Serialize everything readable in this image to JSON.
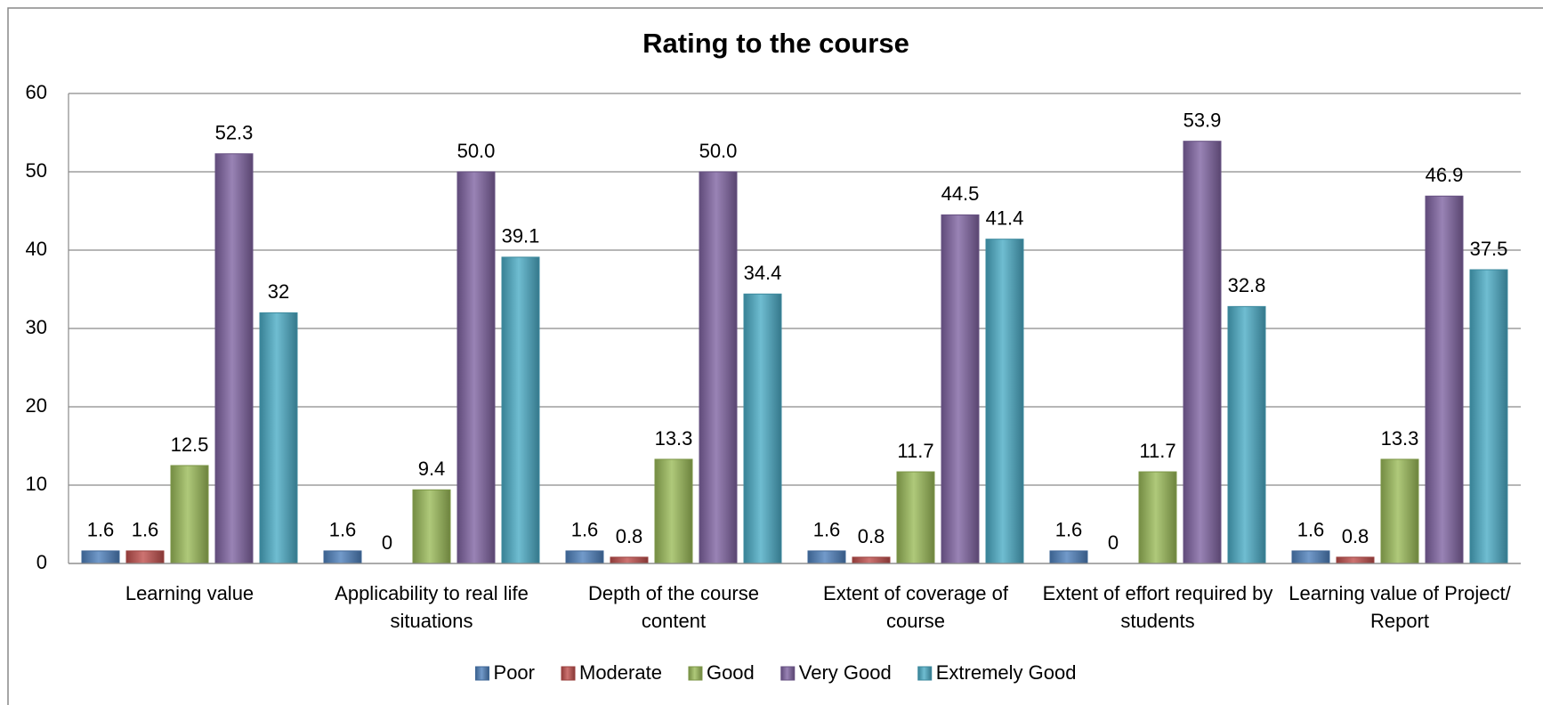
{
  "chart_data": {
    "type": "bar",
    "title": "Rating to the course",
    "categories": [
      "Learning value",
      "Applicability to real life situations",
      "Depth of the course content",
      "Extent of coverage of course",
      "Extent of effort required by students",
      "Learning value of Project/ Report"
    ],
    "series": [
      {
        "name": "Poor",
        "color": "#4f81bd",
        "values": [
          1.6,
          1.6,
          1.6,
          1.6,
          1.6,
          1.6
        ],
        "value_labels": [
          "1.6",
          "1.6",
          "1.6",
          "1.6",
          "1.6",
          "1.6"
        ]
      },
      {
        "name": "Moderate",
        "color": "#c0504d",
        "values": [
          1.6,
          0,
          0.8,
          0.8,
          0,
          0.8
        ],
        "value_labels": [
          "1.6",
          "0",
          "0.8",
          "0.8",
          "0",
          "0.8"
        ]
      },
      {
        "name": "Good",
        "color": "#9bbb59",
        "values": [
          12.5,
          9.4,
          13.3,
          11.7,
          11.7,
          13.3
        ],
        "value_labels": [
          "12.5",
          "9.4",
          "13.3",
          "11.7",
          "11.7",
          "13.3"
        ]
      },
      {
        "name": "Very Good",
        "color": "#8064a2",
        "values": [
          52.3,
          50.0,
          50.0,
          44.5,
          53.9,
          46.9
        ],
        "value_labels": [
          "52.3",
          "50.0",
          "50.0",
          "44.5",
          "53.9",
          "46.9"
        ]
      },
      {
        "name": "Extremely Good",
        "color": "#4bacc6",
        "values": [
          32,
          39.1,
          34.4,
          41.4,
          32.8,
          37.5
        ],
        "value_labels": [
          "32",
          "39.1",
          "34.4",
          "41.4",
          "32.8",
          "37.5"
        ]
      }
    ],
    "ylim": [
      0,
      60
    ],
    "yticks": [
      0,
      10,
      20,
      30,
      40,
      50,
      60
    ],
    "grid": true,
    "legend": "bottom"
  }
}
